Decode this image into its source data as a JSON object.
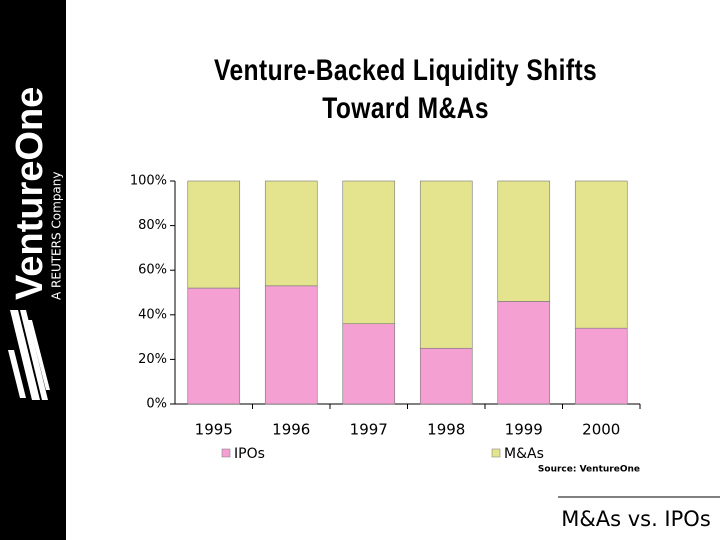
{
  "brand": {
    "name": "VentureOne",
    "tagline": "A REUTERS Company"
  },
  "footer": "M&As vs. IPOs",
  "chart_data": {
    "type": "stacked_bar",
    "title": "Venture-Backed Liquidity Shifts\nToward M&As",
    "source": "Source: VentureOne",
    "categories": [
      "1995",
      "1996",
      "1997",
      "1998",
      "1999",
      "2000"
    ],
    "series": [
      {
        "name": "IPOs",
        "color": "#f4a0d2",
        "values": [
          52,
          53,
          36,
          25,
          46,
          34
        ]
      },
      {
        "name": "M&As",
        "color": "#e4e48e",
        "values": [
          48,
          47,
          64,
          75,
          54,
          66
        ]
      }
    ],
    "ylim": [
      0,
      100
    ],
    "yticks": [
      {
        "value": 0,
        "label": "0%"
      },
      {
        "value": 20,
        "label": "20%"
      },
      {
        "value": 40,
        "label": "40%"
      },
      {
        "value": 60,
        "label": "60%"
      },
      {
        "value": 80,
        "label": "80%"
      },
      {
        "value": 100,
        "label": "100%"
      }
    ]
  }
}
